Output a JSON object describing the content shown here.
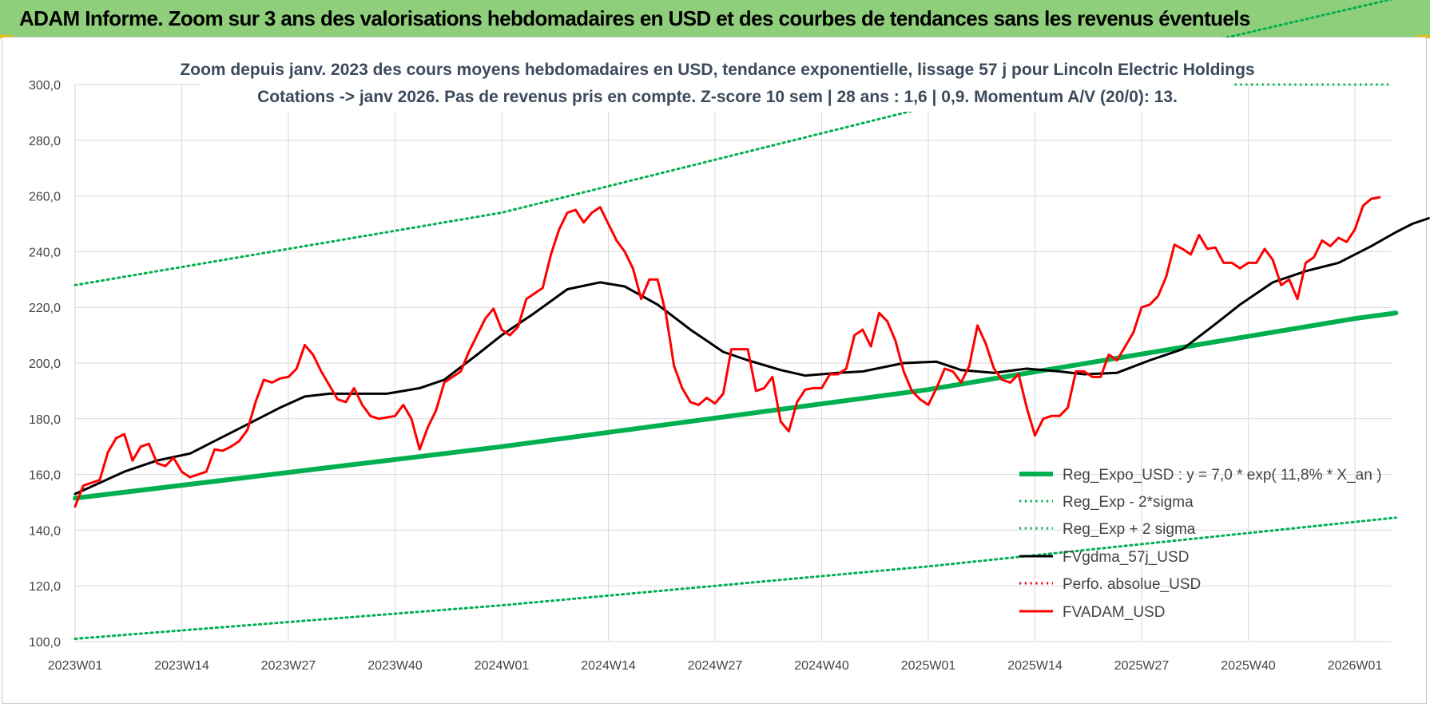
{
  "header": {
    "title": "ADAM Informe. Zoom sur 3 ans des valorisations hebdomadaires en USD et des courbes de tendances sans les revenus éventuels"
  },
  "chart_data": {
    "type": "line",
    "title_line1": "Zoom depuis janv. 2023 des cours moyens hebdomadaires en USD, tendance exponentielle, lissage 57 j pour Lincoln Electric Holdings",
    "title_line2": "Cotations -> janv 2026. Pas de revenus pris en compte. Z-score 10 sem  | 28 ans : 1,6 | 0,9. Momentum A/V (20/0): 13.",
    "ylim": [
      100,
      300
    ],
    "yticks": [
      "100,0",
      "120,0",
      "140,0",
      "160,0",
      "180,0",
      "200,0",
      "220,0",
      "240,0",
      "260,0",
      "280,0",
      "300,0"
    ],
    "xticks": [
      "2023W01",
      "2023W14",
      "2023W27",
      "2023W40",
      "2024W01",
      "2024W14",
      "2024W27",
      "2024W40",
      "2025W01",
      "2025W14",
      "2025W27",
      "2025W40",
      "2026W01"
    ],
    "x_weeks": 161,
    "colors": {
      "green": "#00b050",
      "black": "#000000",
      "red": "#ff0000",
      "grid": "#d9d9d9"
    },
    "series": [
      {
        "name": "Reg_Expo_USD : y = 7,0 * exp( 11,8% *  X_an )",
        "style": "solid-thick",
        "color": "#00b050",
        "points": [
          [
            0,
            151.5
          ],
          [
            52,
            170
          ],
          [
            104,
            190.5
          ],
          [
            156,
            216
          ],
          [
            161,
            218
          ]
        ]
      },
      {
        "name": "Reg_Exp - 2*sigma",
        "style": "dotted",
        "color": "#00b050",
        "points": [
          [
            0,
            101
          ],
          [
            52,
            113
          ],
          [
            104,
            127
          ],
          [
            161,
            144.5
          ]
        ]
      },
      {
        "name": "Reg_Exp + 2 sigma",
        "style": "dotted",
        "color": "#00b050",
        "points": [
          [
            0,
            228
          ],
          [
            52,
            254
          ],
          [
            104,
            292
          ],
          [
            161,
            331
          ]
        ]
      },
      {
        "name": "FVgdma_57j_USD",
        "style": "solid",
        "color": "#000000",
        "points": [
          [
            0,
            153
          ],
          [
            3,
            157
          ],
          [
            6,
            161
          ],
          [
            10,
            165
          ],
          [
            14,
            167.5
          ],
          [
            17,
            172
          ],
          [
            21,
            178
          ],
          [
            25,
            184
          ],
          [
            28,
            188
          ],
          [
            31,
            189
          ],
          [
            34,
            189
          ],
          [
            38,
            189
          ],
          [
            42,
            191
          ],
          [
            45,
            194
          ],
          [
            49,
            203
          ],
          [
            52,
            210
          ],
          [
            56,
            218
          ],
          [
            60,
            226.5
          ],
          [
            64,
            229
          ],
          [
            67,
            227.5
          ],
          [
            71,
            221
          ],
          [
            75,
            212
          ],
          [
            79,
            204
          ],
          [
            82,
            201
          ],
          [
            86,
            197.5
          ],
          [
            89,
            195.5
          ],
          [
            93,
            196.5
          ],
          [
            96,
            197
          ],
          [
            101,
            200
          ],
          [
            105,
            200.5
          ],
          [
            108,
            197.5
          ],
          [
            112,
            196.5
          ],
          [
            116,
            198
          ],
          [
            120,
            197
          ],
          [
            123,
            196
          ],
          [
            127,
            196.5
          ],
          [
            131,
            201
          ],
          [
            135,
            205
          ],
          [
            139,
            214
          ],
          [
            142,
            221
          ],
          [
            146,
            229
          ],
          [
            150,
            233
          ],
          [
            154,
            236
          ],
          [
            158,
            242
          ],
          [
            161,
            247
          ],
          [
            163,
            250
          ],
          [
            165,
            252
          ]
        ]
      },
      {
        "name": "Perfo. absolue_USD",
        "style": "dotted",
        "color": "#ff0000",
        "points": []
      },
      {
        "name": "FVADAM_USD",
        "style": "solid",
        "color": "#ff0000",
        "points": [
          [
            0,
            148.5
          ],
          [
            1,
            156
          ],
          [
            2,
            157
          ],
          [
            3,
            158
          ],
          [
            4,
            168
          ],
          [
            5,
            173
          ],
          [
            6,
            174.5
          ],
          [
            7,
            165
          ],
          [
            8,
            170
          ],
          [
            9,
            171
          ],
          [
            10,
            164
          ],
          [
            11,
            163
          ],
          [
            12,
            166
          ],
          [
            13,
            161
          ],
          [
            14,
            159
          ],
          [
            15,
            160
          ],
          [
            16,
            161
          ],
          [
            17,
            169
          ],
          [
            18,
            168.5
          ],
          [
            19,
            170
          ],
          [
            20,
            172
          ],
          [
            21,
            176
          ],
          [
            22,
            186
          ],
          [
            23,
            194
          ],
          [
            24,
            193
          ],
          [
            25,
            194.5
          ],
          [
            26,
            195
          ],
          [
            27,
            198
          ],
          [
            28,
            206.5
          ],
          [
            29,
            203
          ],
          [
            30,
            197
          ],
          [
            31,
            192
          ],
          [
            32,
            187
          ],
          [
            33,
            186
          ],
          [
            34,
            191
          ],
          [
            35,
            185
          ],
          [
            36,
            181
          ],
          [
            37,
            180
          ],
          [
            38,
            180.5
          ],
          [
            39,
            181
          ],
          [
            40,
            185
          ],
          [
            41,
            180
          ],
          [
            42,
            169
          ],
          [
            43,
            177
          ],
          [
            44,
            183
          ],
          [
            45,
            193
          ],
          [
            46,
            195
          ],
          [
            47,
            197
          ],
          [
            48,
            204
          ],
          [
            49,
            210
          ],
          [
            50,
            216
          ],
          [
            51,
            219.5
          ],
          [
            52,
            212
          ],
          [
            53,
            210
          ],
          [
            54,
            213
          ],
          [
            55,
            223
          ],
          [
            56,
            225
          ],
          [
            57,
            227
          ],
          [
            58,
            239
          ],
          [
            59,
            248
          ],
          [
            60,
            254
          ],
          [
            61,
            255
          ],
          [
            62,
            250.5
          ],
          [
            63,
            254
          ],
          [
            64,
            256
          ],
          [
            65,
            250
          ],
          [
            66,
            244
          ],
          [
            67,
            240
          ],
          [
            68,
            234
          ],
          [
            69,
            223
          ],
          [
            70,
            230
          ],
          [
            71,
            230
          ],
          [
            72,
            218
          ],
          [
            73,
            199
          ],
          [
            74,
            191
          ],
          [
            75,
            186
          ],
          [
            76,
            185
          ],
          [
            77,
            187.5
          ],
          [
            78,
            185.5
          ],
          [
            79,
            189
          ],
          [
            80,
            205
          ],
          [
            81,
            205
          ],
          [
            82,
            205
          ],
          [
            83,
            190
          ],
          [
            84,
            191
          ],
          [
            85,
            195
          ],
          [
            86,
            179
          ],
          [
            87,
            175.5
          ],
          [
            88,
            186
          ],
          [
            89,
            190.5
          ],
          [
            90,
            191
          ],
          [
            91,
            191
          ],
          [
            92,
            196
          ],
          [
            93,
            196
          ],
          [
            94,
            198
          ],
          [
            95,
            210
          ],
          [
            96,
            212
          ],
          [
            97,
            206
          ],
          [
            98,
            218
          ],
          [
            99,
            215
          ],
          [
            100,
            208
          ],
          [
            101,
            197
          ],
          [
            102,
            190
          ],
          [
            103,
            187
          ],
          [
            104,
            185
          ],
          [
            105,
            191
          ],
          [
            106,
            198
          ],
          [
            107,
            197
          ],
          [
            108,
            193
          ],
          [
            109,
            199
          ],
          [
            110,
            213.5
          ],
          [
            111,
            207
          ],
          [
            112,
            198
          ],
          [
            113,
            194
          ],
          [
            114,
            193
          ],
          [
            115,
            196
          ],
          [
            116,
            184
          ],
          [
            117,
            174
          ],
          [
            118,
            180
          ],
          [
            119,
            181
          ],
          [
            120,
            181
          ],
          [
            121,
            184
          ],
          [
            122,
            197
          ],
          [
            123,
            197
          ],
          [
            124,
            195
          ],
          [
            125,
            195
          ],
          [
            126,
            203
          ],
          [
            127,
            201
          ],
          [
            128,
            206
          ],
          [
            129,
            211
          ],
          [
            130,
            220
          ],
          [
            131,
            221
          ],
          [
            132,
            224
          ],
          [
            133,
            231
          ],
          [
            134,
            242.5
          ],
          [
            135,
            241
          ],
          [
            136,
            239
          ],
          [
            137,
            246
          ],
          [
            138,
            241
          ],
          [
            139,
            241.5
          ],
          [
            140,
            236
          ],
          [
            141,
            236
          ],
          [
            142,
            234
          ],
          [
            143,
            236
          ],
          [
            144,
            236
          ],
          [
            145,
            241
          ],
          [
            146,
            237
          ],
          [
            147,
            228
          ],
          [
            148,
            230
          ],
          [
            149,
            223
          ],
          [
            150,
            236
          ],
          [
            151,
            238
          ],
          [
            152,
            244
          ],
          [
            153,
            242
          ],
          [
            154,
            245
          ],
          [
            155,
            243.5
          ],
          [
            156,
            248
          ],
          [
            157,
            256.5
          ],
          [
            158,
            259
          ],
          [
            159,
            259.5
          ]
        ]
      }
    ],
    "legend_position": "bottom-right"
  }
}
